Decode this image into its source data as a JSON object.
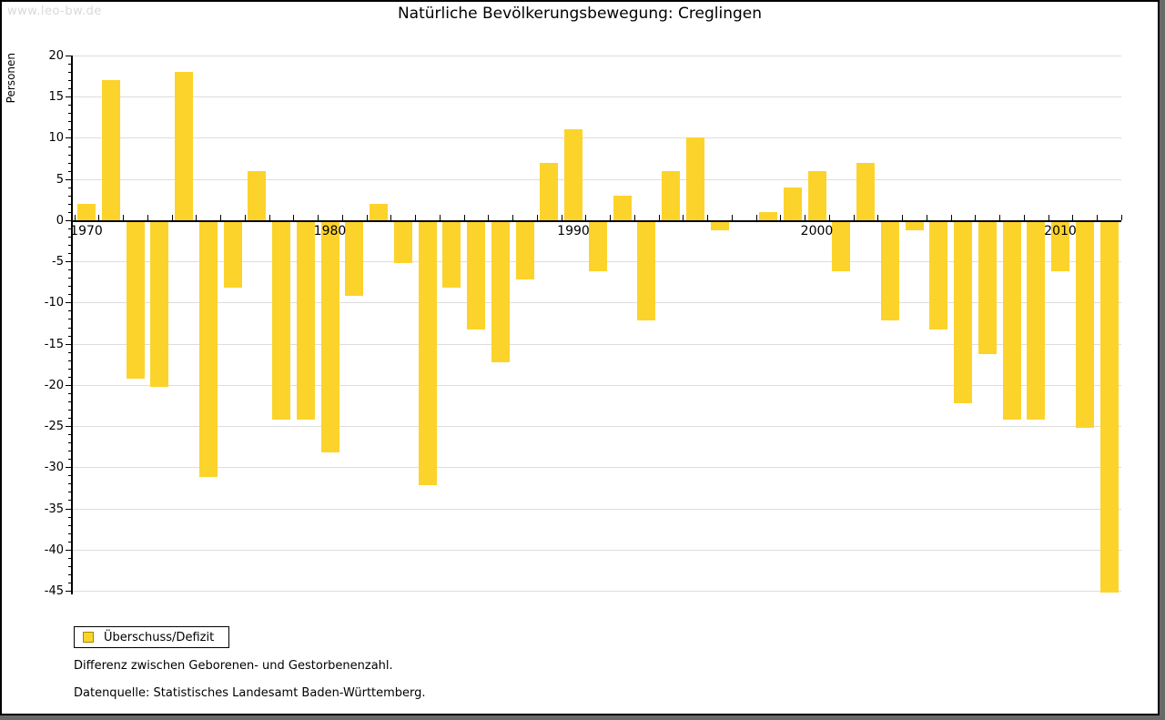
{
  "watermark": "www.leo-bw.de",
  "title": "Natürliche Bevölkerungsbewegung: Creglingen",
  "y_axis_label": "Personen",
  "legend": {
    "label": "Überschuss/Defizit"
  },
  "footnotes": [
    "Differenz zwischen Geborenen- und Gestorbenenzahl.",
    "Datenquelle: Statistisches Landesamt Baden-Württemberg."
  ],
  "chart_data": {
    "type": "bar",
    "title": "Natürliche Bevölkerungsbewegung: Creglingen",
    "xlabel": "",
    "ylabel": "Personen",
    "series_name": "Überschuss/Defizit",
    "categories": [
      1970,
      1971,
      1972,
      1973,
      1974,
      1975,
      1976,
      1977,
      1978,
      1979,
      1980,
      1981,
      1982,
      1983,
      1984,
      1985,
      1986,
      1987,
      1988,
      1989,
      1990,
      1991,
      1992,
      1993,
      1994,
      1995,
      1996,
      1997,
      1998,
      1999,
      2000,
      2001,
      2002,
      2003,
      2004,
      2005,
      2006,
      2007,
      2008,
      2009,
      2010,
      2011,
      2012
    ],
    "values": [
      2,
      17,
      -19,
      -20,
      18,
      -31,
      -8,
      6,
      -24,
      -24,
      -28,
      -9,
      2,
      -5,
      -32,
      -8,
      -13,
      -17,
      -7,
      7,
      11,
      -6,
      3,
      -12,
      6,
      10,
      -1,
      0,
      1,
      4,
      6,
      -6,
      7,
      -12,
      -1,
      -13,
      -22,
      -16,
      -24,
      -24,
      -6,
      -25,
      -45
    ],
    "ylim": [
      -45,
      20
    ],
    "ytick_step_major": 5,
    "ytick_step_minor": 1,
    "y_ticks": [
      20,
      15,
      10,
      5,
      0,
      -5,
      -10,
      -15,
      -20,
      -25,
      -30,
      -35,
      -40,
      -45
    ],
    "xtick_labels": [
      "1970",
      "1980",
      "1990",
      "2000",
      "2010"
    ],
    "grid": true,
    "legend_position": "bottom-left",
    "colors": {
      "bar": "#FCD32B",
      "grid": "#DDDDDD",
      "axis": "#000000",
      "watermark": "#D9D9D9",
      "frame_shadow": "#696969",
      "legend_swatch_border": "#A38B00"
    }
  }
}
